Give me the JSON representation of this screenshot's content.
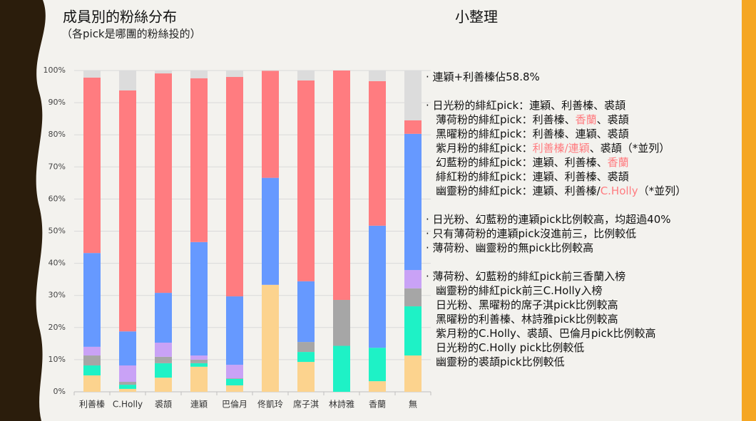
{
  "chart_data": {
    "type": "stacked-bar",
    "title": "成員別的粉絲分布",
    "subtitle": "（各pick是哪團的粉絲投的）",
    "categories": [
      "利善榛",
      "C.Holly",
      "裘頡",
      "連穎",
      "巴倫月",
      "佟凱玲",
      "席子淇",
      "林詩雅",
      "香蘭",
      "無"
    ],
    "series": [
      {
        "color": "#fcd38e",
        "values": [
          5.1,
          0.9,
          4.4,
          7.8,
          2.0,
          33.3,
          9.3,
          0,
          3.3,
          11.3
        ]
      },
      {
        "color": "#1ef2c6",
        "values": [
          3.1,
          1.3,
          4.5,
          1.1,
          2.0,
          0,
          3.1,
          14.3,
          10.4,
          15.3
        ]
      },
      {
        "color": "#a6a6a6",
        "values": [
          3.1,
          0.9,
          2.0,
          1.1,
          0.2,
          0,
          3.1,
          14.3,
          0,
          5.6
        ]
      },
      {
        "color": "#c9a2f6",
        "values": [
          2.7,
          5.1,
          4.4,
          1.3,
          4.2,
          0,
          0,
          0,
          0,
          5.7
        ]
      },
      {
        "color": "#6699ff",
        "values": [
          29.2,
          10.6,
          15.5,
          35.3,
          21.3,
          33.3,
          18.9,
          0,
          38.0,
          42.4
        ]
      },
      {
        "color": "#ff7c80",
        "values": [
          54.6,
          75.0,
          68.3,
          51.0,
          68.3,
          33.3,
          62.5,
          71.4,
          45.0,
          4.2
        ]
      },
      {
        "color": "#dcdcdc",
        "values": [
          2.2,
          6.2,
          0.9,
          2.4,
          2.0,
          0,
          3.1,
          0,
          3.3,
          15.5
        ]
      }
    ],
    "ylim": [
      0,
      100
    ],
    "yticks": [
      {
        "value": 0,
        "label": "0%"
      },
      {
        "value": 10,
        "label": "10%"
      },
      {
        "value": 20,
        "label": "20%"
      },
      {
        "value": 30,
        "label": "30%"
      },
      {
        "value": 40,
        "label": "40%"
      },
      {
        "value": 50,
        "label": "50%"
      },
      {
        "value": 60,
        "label": "60%"
      },
      {
        "value": 70,
        "label": "70%"
      },
      {
        "value": 80,
        "label": "80%"
      },
      {
        "value": 90,
        "label": "90%"
      },
      {
        "value": 100,
        "label": "100%"
      }
    ],
    "grid": true
  },
  "notes": {
    "title": "小整理",
    "highlight_color": "#ff7c80",
    "groups": [
      [
        [
          "· 連穎+利善榛佔58.8%"
        ]
      ],
      [
        [
          "· 日光粉的緋紅pick：連穎、利善榛、裘頡"
        ],
        [
          "薄荷粉的緋紅pick：利善榛、",
          {
            "hl": "香蘭"
          },
          "、裘頡"
        ],
        [
          "黑曜粉的緋紅pick：利善榛、連穎、裘頡"
        ],
        [
          "紫月粉的緋紅pick：",
          {
            "hl": "利善榛/連穎"
          },
          "、裘頡（*並列）"
        ],
        [
          "幻藍粉的緋紅pick：連穎、利善榛、",
          {
            "hl": "香蘭"
          }
        ],
        [
          "緋紅粉的緋紅pick：連穎、利善榛、裘頡"
        ],
        [
          "幽靈粉的緋紅pick：連穎、利善榛/",
          {
            "hl": "C.Holly"
          },
          "（*並列）"
        ]
      ],
      [
        [
          "· 日光粉、幻藍粉的連穎pick比例較高，均超過40%"
        ],
        [
          "· 只有薄荷粉的連穎pick沒進前三，比例較低"
        ],
        [
          "· 薄荷粉、幽靈粉的無pick比例較高"
        ]
      ],
      [
        [
          "· 薄荷粉、幻藍粉的緋紅pick前三香蘭入榜"
        ],
        [
          "幽靈粉的緋紅pick前三C.Holly入榜"
        ],
        [
          "日光粉、黑曜粉的席子淇pick比例較高"
        ],
        [
          "黑曜粉的利善榛、林詩雅pick比例較高"
        ],
        [
          "紫月粉的C.Holly、裘頡、巴倫月pick比例較高"
        ],
        [
          "日光粉的C.Holly pick比例較低"
        ],
        [
          "幽靈粉的裘頡pick比例較低"
        ]
      ]
    ]
  }
}
